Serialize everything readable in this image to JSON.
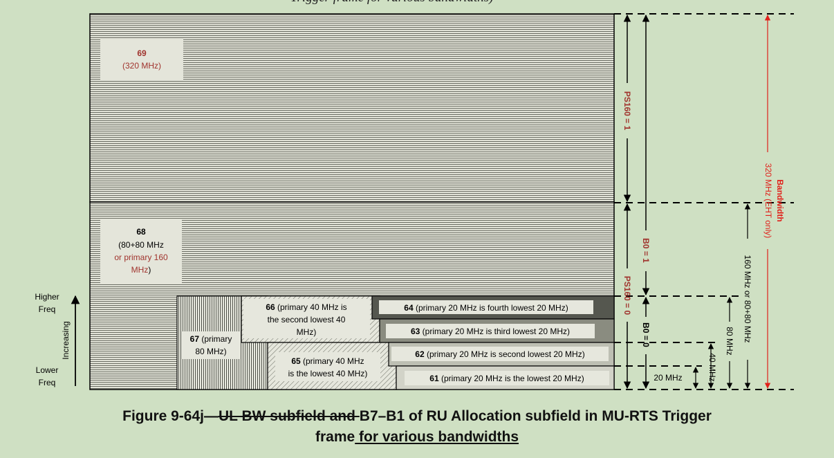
{
  "header": {
    "partial_text": "Trigger frame for various bandwidths)"
  },
  "blocks": {
    "b69": {
      "num": "69",
      "desc": "(320 MHz)"
    },
    "b68": {
      "num": "68",
      "line2": "(80+80 MHz",
      "line3": "or primary 160",
      "line4": "MHz",
      "line4_tail": ")"
    },
    "b67": {
      "num": "67",
      "line1_tail": " (primary",
      "line2": "80 MHz)"
    },
    "b66": {
      "num": "66",
      "line1_tail": " (primary 40 MHz is",
      "line2": "the second lowest 40",
      "line3": "MHz)"
    },
    "b65": {
      "num": "65",
      "line1_tail": " (primary 40 MHz",
      "line2": "is the lowest 40 MHz)"
    },
    "b64": {
      "num": "64",
      "desc": " (primary 20 MHz is fourth lowest 20 MHz)"
    },
    "b63": {
      "num": "63",
      "desc": " (primary 20 MHz is third lowest 20 MHz)"
    },
    "b62": {
      "num": "62",
      "desc": " (primary 20 MHz is second lowest 20 MHz)"
    },
    "b61": {
      "num": "61",
      "desc": " (primary 20 MHz is the lowest 20 MHz)"
    }
  },
  "bit_labels": {
    "ps160_1": "PS160 = 1",
    "ps160_0": "PS160 = 0",
    "b0_1": "B0 = 1",
    "b0_0": "B0 = 0"
  },
  "bandwidth_labels": {
    "title": "Bandwidth",
    "bw320": "320 MHz (EHT only)",
    "bw160": "160 MHz or 80+80 MHz",
    "bw80": "80 MHz",
    "bw40": "40 MHz",
    "bw20": "20 MHz"
  },
  "freq_axis": {
    "higher_1": "Higher",
    "higher_2": "Freq",
    "lower_1": "Lower",
    "lower_2": "Freq",
    "increasing": "Increasing"
  },
  "caption": {
    "part1": "Figure 9-64j—",
    "struck": "UL BW subfield and ",
    "part2": "B7–B1 of RU Allocation subfield in MU-RTS Trigger",
    "line2_a": "frame",
    "line2_underlined": " for various bandwidths"
  },
  "colors": {
    "background": "#cfe0c3",
    "accent_red": "#a0332d",
    "bandwidth_red": "#e0201a",
    "dark_box": "#55574f",
    "mid_box": "#8a8c80",
    "light_box": "#bdbfb3"
  }
}
